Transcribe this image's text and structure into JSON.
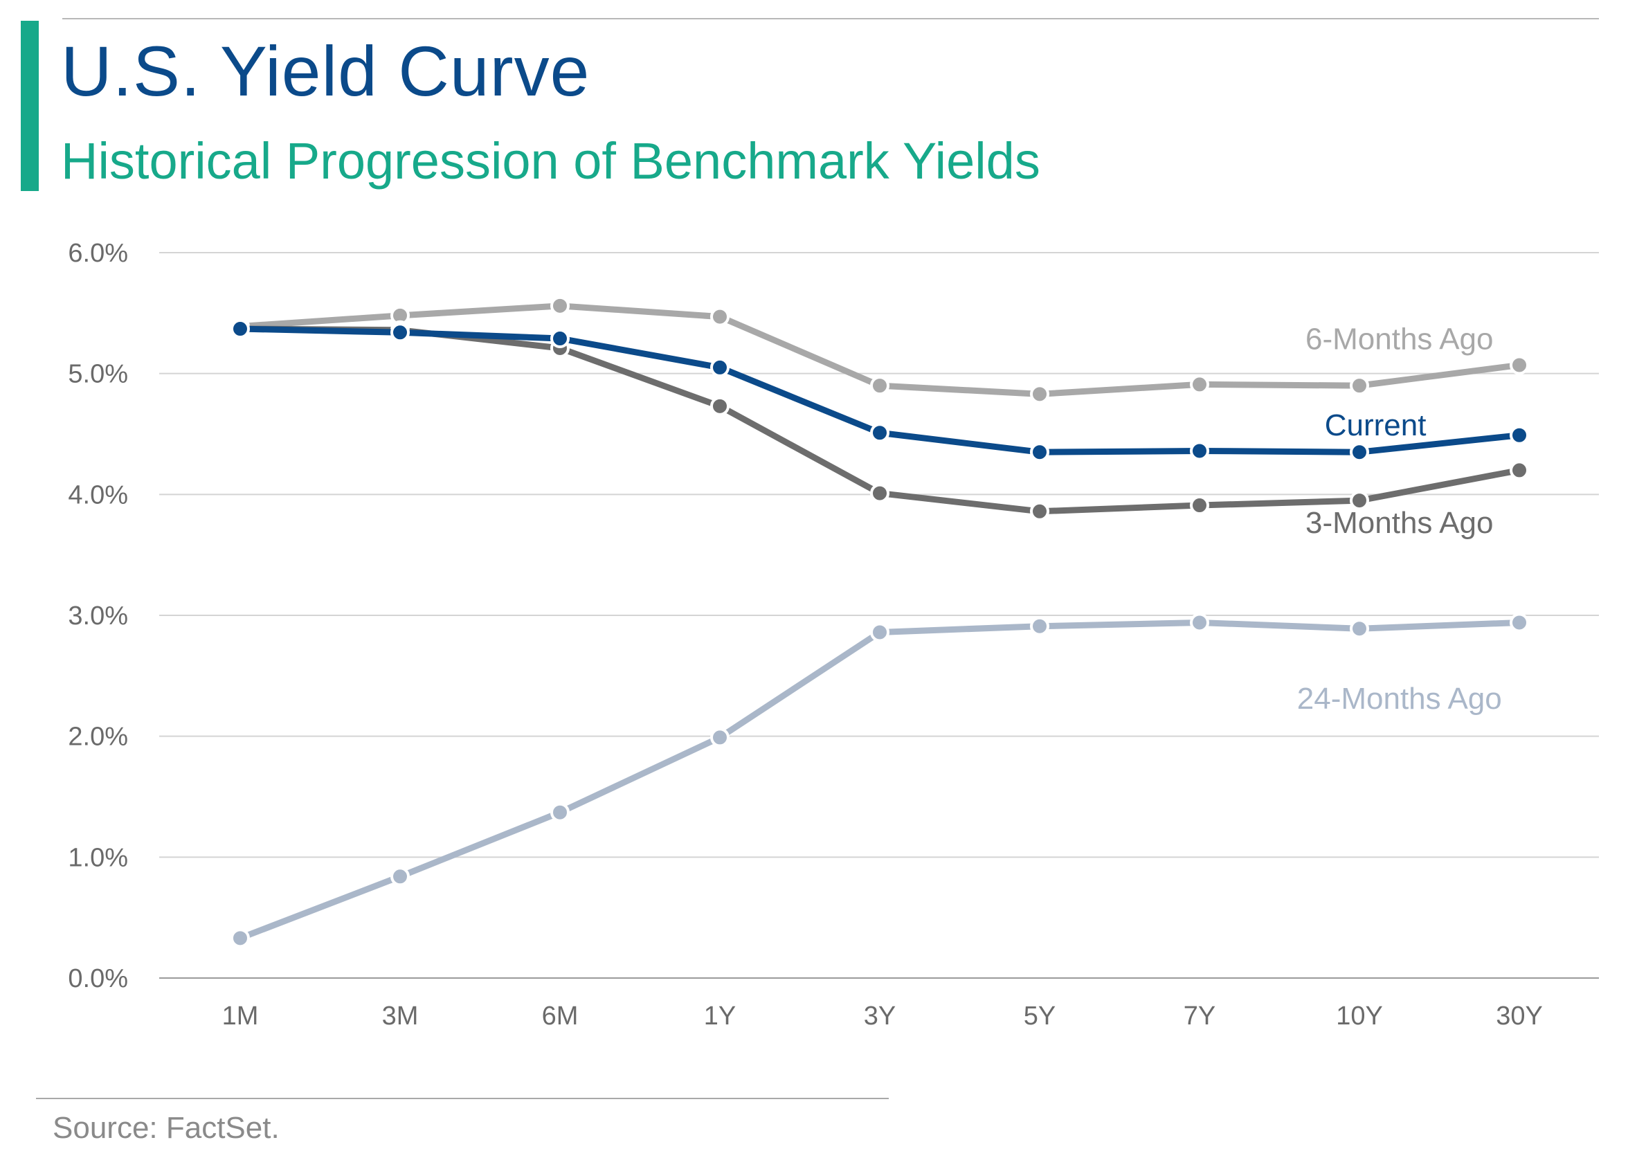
{
  "header": {
    "title": "U.S. Yield Curve",
    "subtitle": "Historical Progression of Benchmark Yields"
  },
  "footer": {
    "source": "Source: FactSet."
  },
  "colors": {
    "accent_bar": "#17a98a",
    "title": "#0b4a8a",
    "subtitle": "#17a98a"
  },
  "chart_data": {
    "type": "line",
    "title": "",
    "xlabel": "",
    "ylabel": "",
    "categories": [
      "1M",
      "3M",
      "6M",
      "1Y",
      "3Y",
      "5Y",
      "7Y",
      "10Y",
      "30Y"
    ],
    "ylim": [
      0,
      6
    ],
    "y_ticks": [
      0,
      1,
      2,
      3,
      4,
      5,
      6
    ],
    "y_tick_labels": [
      "0.0%",
      "1.0%",
      "2.0%",
      "3.0%",
      "4.0%",
      "5.0%",
      "6.0%"
    ],
    "grid": true,
    "legend": "inline labels",
    "series": [
      {
        "name": "24-Months Ago",
        "color": "#aab7c9",
        "values": [
          0.33,
          0.84,
          1.37,
          1.99,
          2.86,
          2.91,
          2.94,
          2.89,
          2.94
        ]
      },
      {
        "name": "6-Months Ago",
        "color": "#a8a8a8",
        "values": [
          5.39,
          5.48,
          5.56,
          5.47,
          4.9,
          4.83,
          4.91,
          4.9,
          5.07
        ]
      },
      {
        "name": "3-Months Ago",
        "color": "#6d6d6d",
        "values": [
          5.37,
          5.36,
          5.21,
          4.73,
          4.01,
          3.86,
          3.91,
          3.95,
          4.2
        ]
      },
      {
        "name": "Current",
        "color": "#0b4a8a",
        "values": [
          5.37,
          5.34,
          5.29,
          5.05,
          4.51,
          4.35,
          4.36,
          4.35,
          4.49
        ]
      }
    ]
  }
}
